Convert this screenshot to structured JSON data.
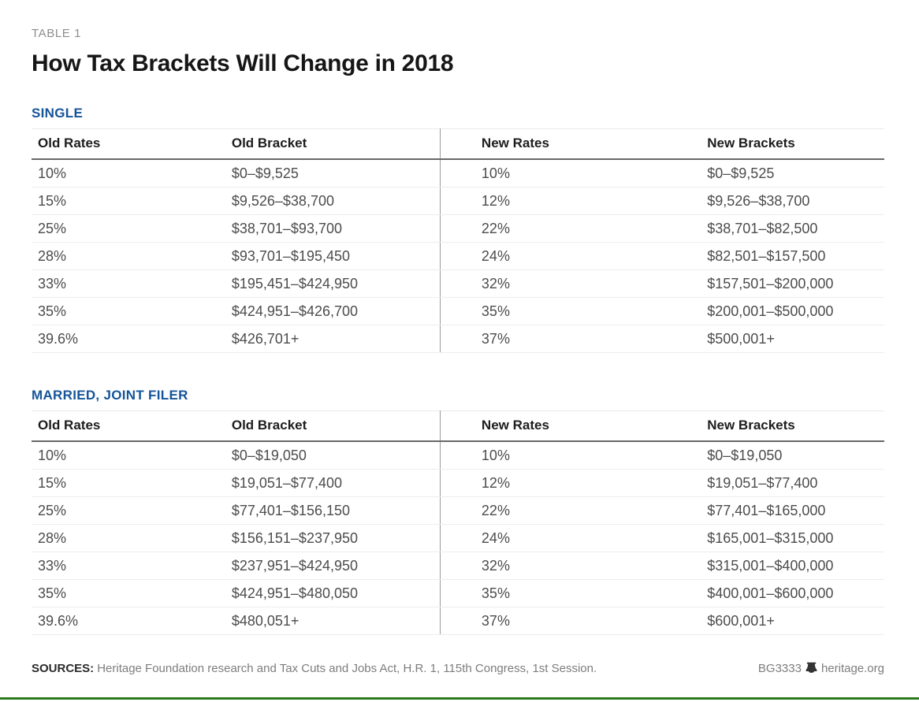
{
  "page": {
    "kicker": "TABLE 1",
    "title": "How Tax Brackets Will Change in 2018"
  },
  "chart_data": [
    {
      "type": "table",
      "title": "SINGLE",
      "columns": [
        "Old Rates",
        "Old Bracket",
        "New Rates",
        "New Brackets"
      ],
      "rows": [
        [
          "10%",
          "$0–$9,525",
          "10%",
          "$0–$9,525"
        ],
        [
          "15%",
          "$9,526–$38,700",
          "12%",
          "$9,526–$38,700"
        ],
        [
          "25%",
          "$38,701–$93,700",
          "22%",
          "$38,701–$82,500"
        ],
        [
          "28%",
          "$93,701–$195,450",
          "24%",
          "$82,501–$157,500"
        ],
        [
          "33%",
          "$195,451–$424,950",
          "32%",
          "$157,501–$200,000"
        ],
        [
          "35%",
          "$424,951–$426,700",
          "35%",
          "$200,001–$500,000"
        ],
        [
          "39.6%",
          "$426,701+",
          "37%",
          "$500,001+"
        ]
      ]
    },
    {
      "type": "table",
      "title": "MARRIED, JOINT FILER",
      "columns": [
        "Old Rates",
        "Old Bracket",
        "New Rates",
        "New Brackets"
      ],
      "rows": [
        [
          "10%",
          "$0–$19,050",
          "10%",
          "$0–$19,050"
        ],
        [
          "15%",
          "$19,051–$77,400",
          "12%",
          "$19,051–$77,400"
        ],
        [
          "25%",
          "$77,401–$156,150",
          "22%",
          "$77,401–$165,000"
        ],
        [
          "28%",
          "$156,151–$237,950",
          "24%",
          "$165,001–$315,000"
        ],
        [
          "33%",
          "$237,951–$424,950",
          "32%",
          "$315,001–$400,000"
        ],
        [
          "35%",
          "$424,951–$480,050",
          "35%",
          "$400,001–$600,000"
        ],
        [
          "39.6%",
          "$480,051+",
          "37%",
          "$600,001+"
        ]
      ]
    }
  ],
  "footer": {
    "sources_label": "SOURCES:",
    "sources_text": "Heritage Foundation research and Tax Cuts and Jobs Act, H.R. 1, 115th Congress, 1st Session.",
    "report_id": "BG3333",
    "site": "heritage.org"
  },
  "colors": {
    "section_blue": "#15549a",
    "bottom_bar_green": "#2b7a1f",
    "header_rule_gray": "#686868"
  }
}
